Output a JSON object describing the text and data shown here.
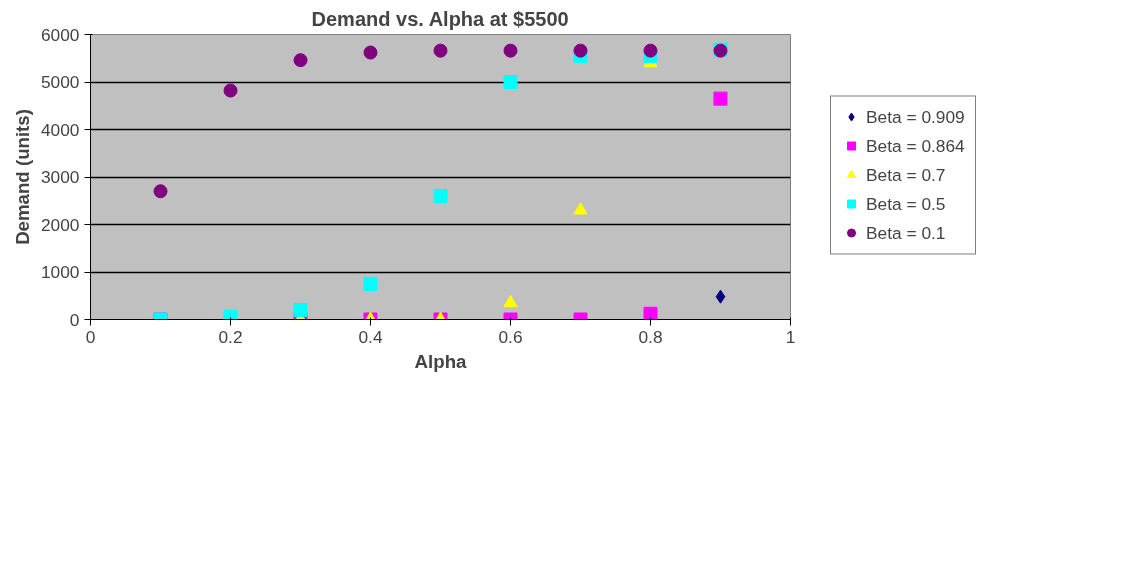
{
  "chart_data": {
    "type": "scatter",
    "title": "Demand vs. Alpha at $5500",
    "xlabel": "Alpha",
    "ylabel": "Demand (units)",
    "x": [
      0.1,
      0.2,
      0.3,
      0.4,
      0.5,
      0.6,
      0.7,
      0.8,
      0.9
    ],
    "series": [
      {
        "name": "Beta = 0.909",
        "color": "#000080",
        "marker": "diamond",
        "values": [
          null,
          null,
          null,
          null,
          null,
          null,
          null,
          null,
          480
        ]
      },
      {
        "name": "Beta = 0.864",
        "color": "#ff00ff",
        "marker": "square",
        "values": [
          0,
          null,
          0,
          0,
          0,
          0,
          0,
          120,
          4650
        ]
      },
      {
        "name": "Beta = 0.7",
        "color": "#ffff00",
        "marker": "triangle",
        "values": [
          null,
          null,
          0,
          0,
          0,
          350,
          2300,
          5400,
          null
        ]
      },
      {
        "name": "Beta = 0.5",
        "color": "#00ffff",
        "marker": "square",
        "values": [
          0,
          60,
          200,
          750,
          2600,
          5000,
          5550,
          5550,
          5680
        ]
      },
      {
        "name": "Beta = 0.1",
        "color": "#800080",
        "marker": "circle",
        "values": [
          2700,
          4820,
          5460,
          5620,
          5660,
          5660,
          5660,
          5660,
          5660
        ]
      }
    ],
    "xlim": [
      0,
      1
    ],
    "xticks": [
      0,
      0.2,
      0.4,
      0.6,
      0.8,
      1
    ],
    "ylim": [
      0,
      6000
    ],
    "yticks": [
      0,
      1000,
      2000,
      3000,
      4000,
      5000,
      6000
    ],
    "grid": "y",
    "legend": "right"
  }
}
